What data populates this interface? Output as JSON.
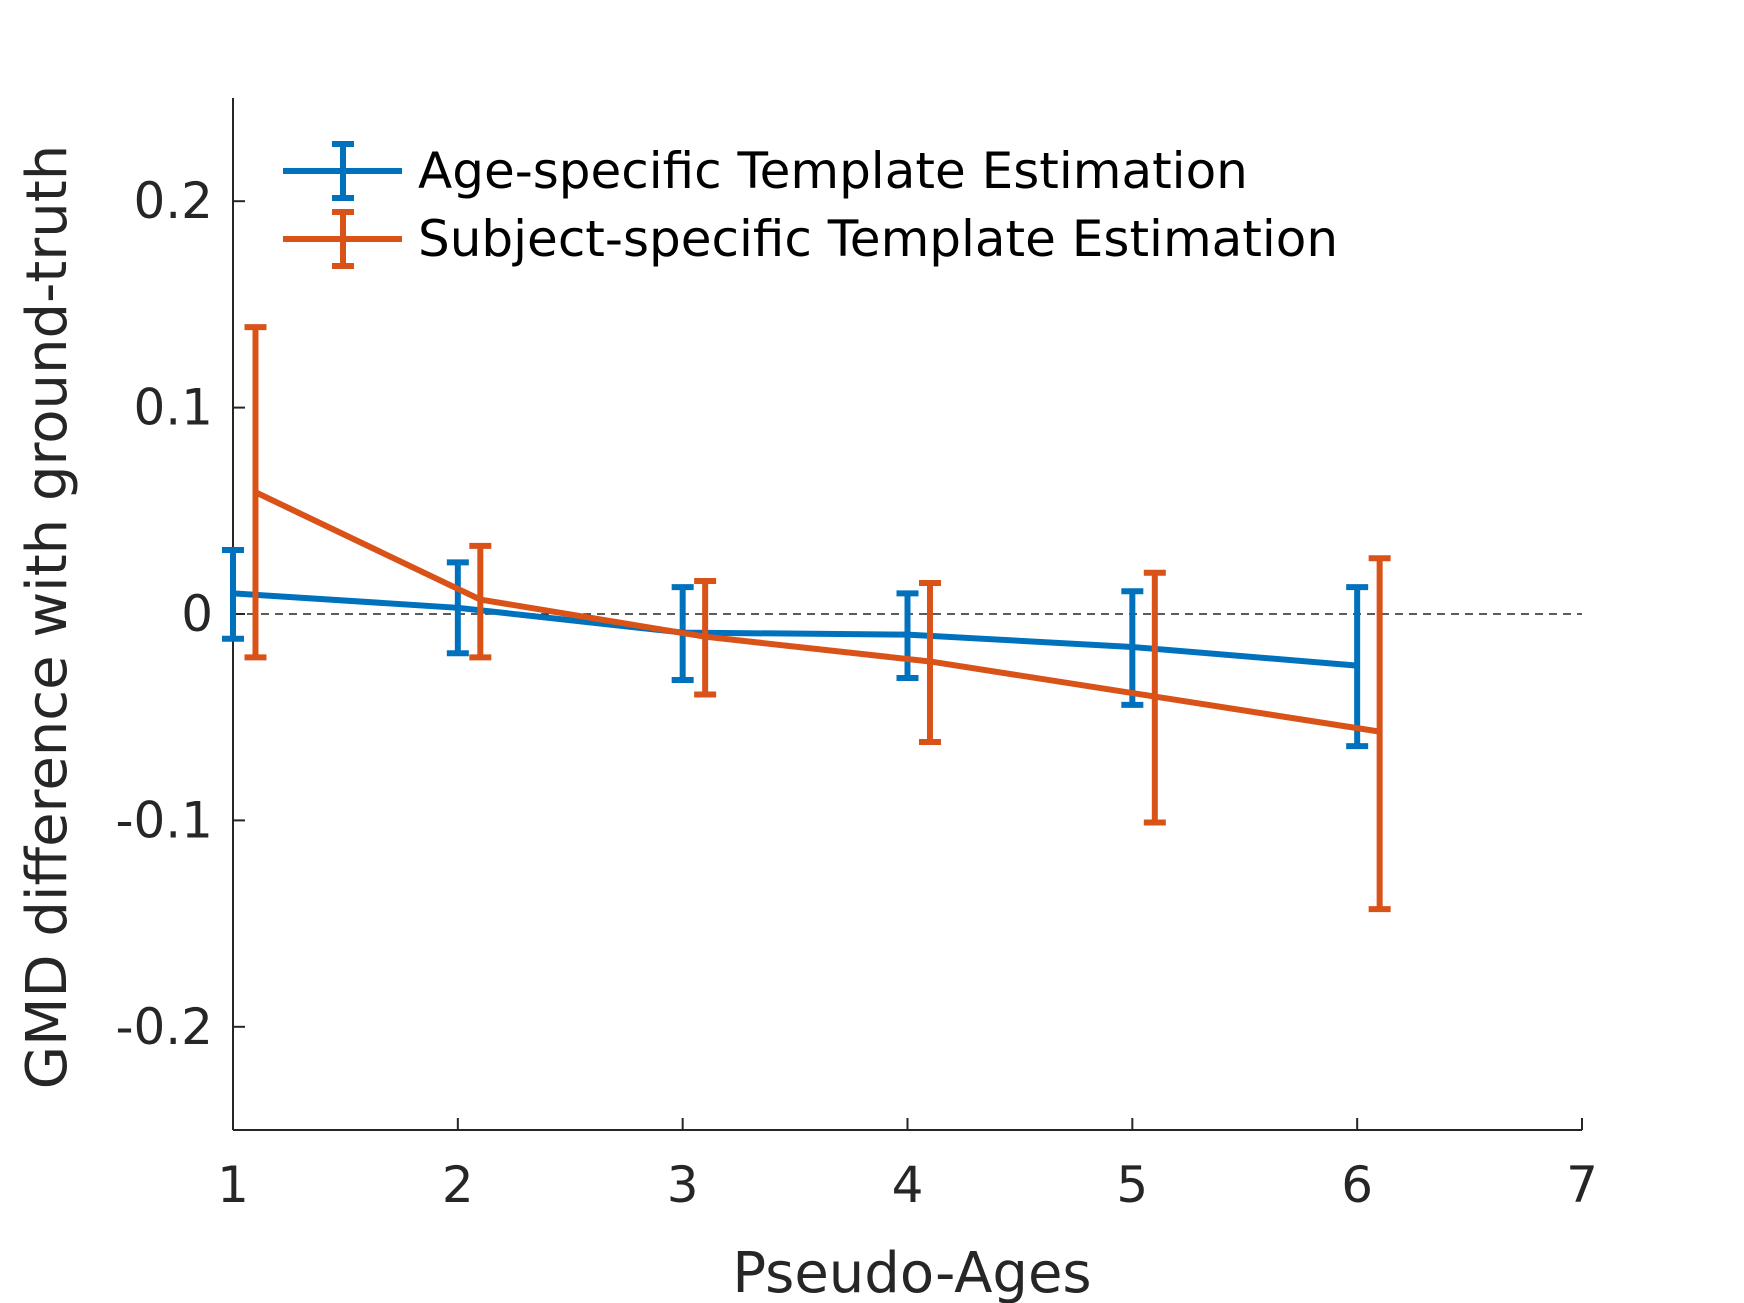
{
  "chart_data": {
    "type": "line",
    "xlabel": "Pseudo-Ages",
    "ylabel": "GMD difference with ground-truth",
    "xlim": [
      1,
      7
    ],
    "ylim": [
      -0.25,
      0.25
    ],
    "xticks": [
      "1",
      "2",
      "3",
      "4",
      "5",
      "6",
      "7"
    ],
    "yticks": [
      "-0.2",
      "-0.1",
      "0",
      "0.1",
      "0.2"
    ],
    "reference_line": {
      "y": 0,
      "style": "dashed"
    },
    "grid": false,
    "legend_position": "top-left",
    "series": [
      {
        "name": "Age-specific Template Estimation",
        "color": "#0072BD",
        "x": [
          1,
          2,
          3,
          4,
          5,
          6
        ],
        "y": [
          0.01,
          0.003,
          -0.009,
          -0.01,
          -0.016,
          -0.025
        ],
        "y_lower": [
          -0.012,
          -0.019,
          -0.032,
          -0.031,
          -0.044,
          -0.064
        ],
        "y_upper": [
          0.031,
          0.025,
          0.013,
          0.01,
          0.011,
          0.013
        ]
      },
      {
        "name": "Subject-specific Template Estimation",
        "color": "#D95319",
        "x": [
          1.1,
          2.1,
          3.1,
          4.1,
          5.1,
          6.1
        ],
        "y": [
          0.059,
          0.007,
          -0.011,
          -0.023,
          -0.04,
          -0.057
        ],
        "y_lower": [
          -0.021,
          -0.021,
          -0.039,
          -0.062,
          -0.101,
          -0.143
        ],
        "y_upper": [
          0.139,
          0.033,
          0.016,
          0.015,
          0.02,
          0.027
        ]
      }
    ]
  }
}
